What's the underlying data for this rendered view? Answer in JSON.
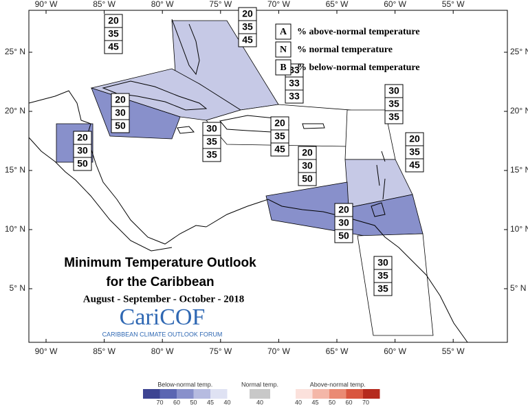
{
  "map": {
    "lon_labels": [
      "90° W",
      "85° W",
      "80° W",
      "75° W",
      "70° W",
      "65° W",
      "60° W",
      "55° W"
    ],
    "lat_labels": [
      "25° N",
      "20° N",
      "15° N",
      "10° N",
      "5° N"
    ],
    "key": [
      {
        "letter": "A",
        "text": "% above-normal temperature"
      },
      {
        "letter": "N",
        "text": "% normal temperature"
      },
      {
        "letter": "B",
        "text": "% below-normal temperature"
      }
    ],
    "title": [
      "Minimum Temperature Outlook",
      "for the Caribbean"
    ],
    "period": "August - September - October - 2018",
    "logo": "CariCOF",
    "logo_subtitle": "CARIBBEAN CLIMATE OUTLOOK FORUM",
    "zones": [
      {
        "A": 20,
        "N": 35,
        "B": 45,
        "color": "#c6c9e6"
      },
      {
        "A": 20,
        "N": 35,
        "B": 45,
        "color": "#c6c9e6"
      },
      {
        "A": 33,
        "N": 33,
        "B": 33,
        "color": "#ffffff"
      },
      {
        "A": 20,
        "N": 30,
        "B": 50,
        "color": "#8890cb"
      },
      {
        "A": 20,
        "N": 30,
        "B": 50,
        "color": "#8890cb"
      },
      {
        "A": 30,
        "N": 35,
        "B": 35,
        "color": "#ffffff"
      },
      {
        "A": 20,
        "N": 35,
        "B": 45,
        "color": "#c6c9e6"
      },
      {
        "A": 30,
        "N": 35,
        "B": 35,
        "color": "#ffffff"
      },
      {
        "A": 20,
        "N": 35,
        "B": 45,
        "color": "#c6c9e6"
      },
      {
        "A": 20,
        "N": 30,
        "B": 50,
        "color": "#8890cb"
      },
      {
        "A": 20,
        "N": 30,
        "B": 50,
        "color": "#8890cb"
      },
      {
        "A": 30,
        "N": 35,
        "B": 35,
        "color": "#ffffff"
      }
    ]
  },
  "color_legend": [
    {
      "title": "Below-normal temp.",
      "ticks": [
        70,
        60,
        50,
        45,
        40
      ],
      "colors": [
        "#3d4492",
        "#5b66b2",
        "#8890cb",
        "#b6bbe0",
        "#dfe2f3"
      ]
    },
    {
      "title": "Normal temp.",
      "ticks": [
        40
      ],
      "colors": [
        "#c8c8c8"
      ]
    },
    {
      "title": "Above-normal temp.",
      "ticks": [
        40,
        45,
        50,
        60,
        70
      ],
      "colors": [
        "#fbe1dc",
        "#f4b7a8",
        "#ea8a73",
        "#d9553e",
        "#b52a1d"
      ]
    }
  ]
}
